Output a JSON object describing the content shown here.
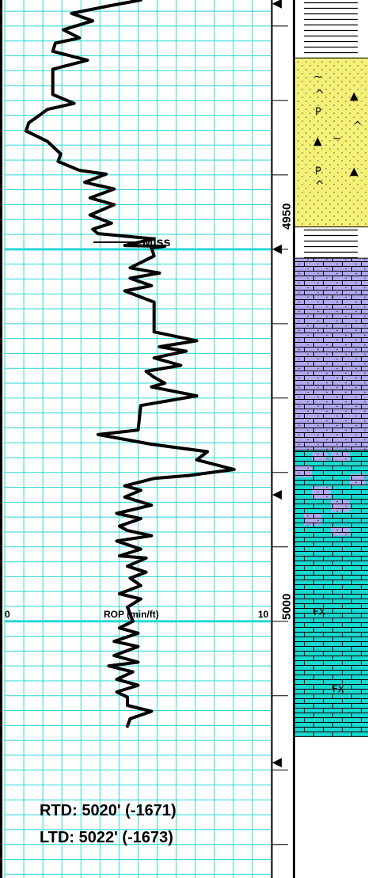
{
  "chart_data": {
    "type": "line",
    "title": "",
    "curve": {
      "label": "ROP (min/ft)",
      "scale_min_label": "0",
      "scale_max_label": "10",
      "scale_min": 0,
      "scale_max": 10,
      "color": "#000000"
    },
    "depth_range": [
      4916.5,
      5034.5
    ],
    "depth_labels": [
      "4950",
      "5000"
    ],
    "formation_tops": [
      {
        "name": "Miss",
        "depth": 4950
      }
    ],
    "rop_series": [
      {
        "rop": 5.1,
        "depth": 4916.5
      },
      {
        "rop": 3.9,
        "depth": 4917.3
      },
      {
        "rop": 2.5,
        "depth": 4918.3
      },
      {
        "rop": 3.3,
        "depth": 4919.3
      },
      {
        "rop": 2.2,
        "depth": 4920.5
      },
      {
        "rop": 2.8,
        "depth": 4921.6
      },
      {
        "rop": 1.9,
        "depth": 4922.3
      },
      {
        "rop": 1.8,
        "depth": 4923.4
      },
      {
        "rop": 3.1,
        "depth": 4924.6
      },
      {
        "rop": 1.8,
        "depth": 4925.8
      },
      {
        "rop": 1.8,
        "depth": 4929.2
      },
      {
        "rop": 2.6,
        "depth": 4930.4
      },
      {
        "rop": 1.6,
        "depth": 4931.2
      },
      {
        "rop": 1.3,
        "depth": 4932.0
      },
      {
        "rop": 0.9,
        "depth": 4933.0
      },
      {
        "rop": 0.8,
        "depth": 4934.1
      },
      {
        "rop": 1.6,
        "depth": 4935.5
      },
      {
        "rop": 2.1,
        "depth": 4937.2
      },
      {
        "rop": 2.0,
        "depth": 4938.2
      },
      {
        "rop": 2.8,
        "depth": 4939.4
      },
      {
        "rop": 3.8,
        "depth": 4939.9
      },
      {
        "rop": 3.0,
        "depth": 4941.0
      },
      {
        "rop": 4.1,
        "depth": 4941.9
      },
      {
        "rop": 3.2,
        "depth": 4943.1
      },
      {
        "rop": 4.1,
        "depth": 4944.0
      },
      {
        "rop": 3.2,
        "depth": 4945.4
      },
      {
        "rop": 4.0,
        "depth": 4946.5
      },
      {
        "rop": 3.3,
        "depth": 4947.3
      },
      {
        "rop": 3.5,
        "depth": 4947.9
      },
      {
        "rop": 5.6,
        "depth": 4948.6
      },
      {
        "rop": 4.5,
        "depth": 4949.5
      },
      {
        "rop": 6.0,
        "depth": 4949.6
      },
      {
        "rop": 5.5,
        "depth": 4949.8
      },
      {
        "rop": 5.6,
        "depth": 4950.9
      },
      {
        "rop": 4.7,
        "depth": 4952.5
      },
      {
        "rop": 5.8,
        "depth": 4953.2
      },
      {
        "rop": 4.7,
        "depth": 4953.9
      },
      {
        "rop": 5.5,
        "depth": 4954.9
      },
      {
        "rop": 4.5,
        "depth": 4955.6
      },
      {
        "rop": 5.6,
        "depth": 4957.1
      },
      {
        "rop": 5.6,
        "depth": 4961.1
      },
      {
        "rop": 7.2,
        "depth": 4962.3
      },
      {
        "rop": 5.8,
        "depth": 4963.1
      },
      {
        "rop": 6.8,
        "depth": 4963.7
      },
      {
        "rop": 5.6,
        "depth": 4964.6
      },
      {
        "rop": 6.6,
        "depth": 4965.6
      },
      {
        "rop": 5.3,
        "depth": 4966.4
      },
      {
        "rop": 5.6,
        "depth": 4967.2
      },
      {
        "rop": 6.0,
        "depth": 4968.0
      },
      {
        "rop": 5.5,
        "depth": 4968.5
      },
      {
        "rop": 7.2,
        "depth": 4969.7
      },
      {
        "rop": 5.1,
        "depth": 4971.0
      },
      {
        "rop": 5.0,
        "depth": 4974.3
      },
      {
        "rop": 3.5,
        "depth": 4974.9
      },
      {
        "rop": 5.5,
        "depth": 4976.2
      },
      {
        "rop": 7.6,
        "depth": 4977.2
      },
      {
        "rop": 7.2,
        "depth": 4978.3
      },
      {
        "rop": 8.6,
        "depth": 4979.6
      },
      {
        "rop": 6.9,
        "depth": 4980.4
      },
      {
        "rop": 5.6,
        "depth": 4980.8
      },
      {
        "rop": 4.5,
        "depth": 4981.8
      },
      {
        "rop": 5.1,
        "depth": 4982.4
      },
      {
        "rop": 4.5,
        "depth": 4983.3
      },
      {
        "rop": 5.5,
        "depth": 4984.4
      },
      {
        "rop": 4.2,
        "depth": 4985.5
      },
      {
        "rop": 5.1,
        "depth": 4986.2
      },
      {
        "rop": 4.3,
        "depth": 4987.2
      },
      {
        "rop": 4.6,
        "depth": 4987.8
      },
      {
        "rop": 5.5,
        "depth": 4988.5
      },
      {
        "rop": 4.2,
        "depth": 4989.2
      },
      {
        "rop": 5.1,
        "depth": 4990.3
      },
      {
        "rop": 4.3,
        "depth": 4991.2
      },
      {
        "rop": 5.3,
        "depth": 4991.5
      },
      {
        "rop": 4.6,
        "depth": 4992.6
      },
      {
        "rop": 5.3,
        "depth": 4993.4
      },
      {
        "rop": 4.7,
        "depth": 4994.2
      },
      {
        "rop": 5.1,
        "depth": 4995.2
      },
      {
        "rop": 4.3,
        "depth": 4996.3
      },
      {
        "rop": 5.1,
        "depth": 4997.0
      },
      {
        "rop": 4.6,
        "depth": 4998.1
      },
      {
        "rop": 4.7,
        "depth": 4999.0
      },
      {
        "rop": 4.8,
        "depth": 5000.0
      },
      {
        "rop": 4.3,
        "depth": 5000.9
      },
      {
        "rop": 5.0,
        "depth": 5001.6
      },
      {
        "rop": 4.1,
        "depth": 5002.7
      },
      {
        "rop": 5.0,
        "depth": 5003.4
      },
      {
        "rop": 4.1,
        "depth": 5004.6
      },
      {
        "rop": 5.0,
        "depth": 5005.5
      },
      {
        "rop": 3.9,
        "depth": 5006.0
      },
      {
        "rop": 4.8,
        "depth": 5006.8
      },
      {
        "rop": 4.2,
        "depth": 5007.8
      },
      {
        "rop": 5.0,
        "depth": 5008.6
      },
      {
        "rop": 4.2,
        "depth": 5009.5
      },
      {
        "rop": 4.6,
        "depth": 5010.2
      },
      {
        "rop": 4.6,
        "depth": 5011.3
      },
      {
        "rop": 5.5,
        "depth": 5012.1
      },
      {
        "rop": 4.7,
        "depth": 5013.1
      },
      {
        "rop": 4.6,
        "depth": 5014.1
      }
    ],
    "lithology": [
      {
        "type": "shale",
        "top": 4916.5,
        "base": 4924.3,
        "color": "#ffffff"
      },
      {
        "type": "sandstone",
        "top": 4924.3,
        "base": 4947.0,
        "color": "#f5f177",
        "symbols": [
          "~",
          "P",
          "▲"
        ]
      },
      {
        "type": "shale",
        "top": 4947.0,
        "base": 4951.2,
        "color": "#ffffff"
      },
      {
        "type": "dolomitic limestone",
        "top": 4951.2,
        "base": 4977.0,
        "color": "#b0a8f0"
      },
      {
        "type": "limestone",
        "top": 4977.0,
        "base": 5015.5,
        "color": "#19d8d0",
        "symbols": [
          "FX"
        ]
      }
    ],
    "depth_markers": [
      4917,
      4950,
      4983,
      5019
    ],
    "notes": [
      "RTD: 5020' (-1671)",
      "LTD: 5022' (-1673)"
    ],
    "grid": true,
    "grid_color": "#27d8d6"
  }
}
